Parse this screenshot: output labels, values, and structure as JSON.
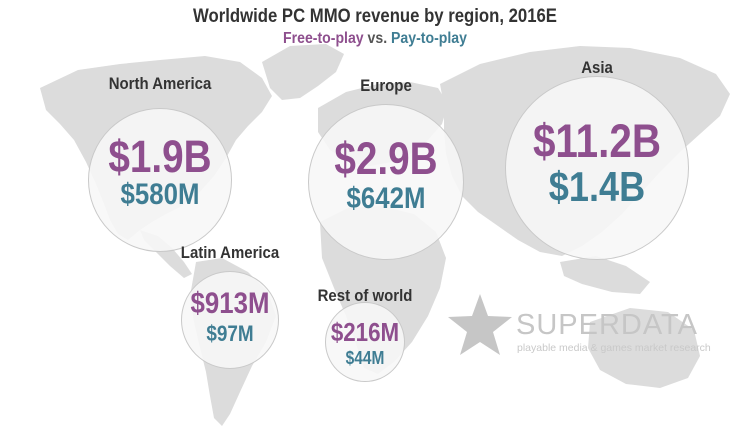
{
  "title": "Worldwide PC MMO revenue by region, 2016E",
  "subtitle": {
    "series_a": "Free-to-play",
    "connector": "vs.",
    "series_b": "Pay-to-play"
  },
  "colors": {
    "free_to_play": "#8e4f8e",
    "pay_to_play": "#3f7d93",
    "map": "#dcdcdc",
    "circle_border": "#c9c9c9"
  },
  "chart_data": {
    "type": "bubble-map",
    "unit": "USD",
    "series": [
      {
        "name": "Free-to-play",
        "values": [
          1900,
          2900,
          11200,
          913,
          216
        ]
      },
      {
        "name": "Pay-to-play",
        "values": [
          580,
          642,
          1400,
          97,
          44
        ]
      }
    ],
    "categories": [
      "North America",
      "Europe",
      "Asia",
      "Latin America",
      "Rest of world"
    ],
    "value_unit": "millions",
    "regions": [
      {
        "name": "North America",
        "f2p_label": "$1.9B",
        "p2p_label": "$580M"
      },
      {
        "name": "Europe",
        "f2p_label": "$2.9B",
        "p2p_label": "$642M"
      },
      {
        "name": "Asia",
        "f2p_label": "$11.2B",
        "p2p_label": "$1.4B"
      },
      {
        "name": "Latin America",
        "f2p_label": "$913M",
        "p2p_label": "$97M"
      },
      {
        "name": "Rest of world",
        "f2p_label": "$216M",
        "p2p_label": "$44M"
      }
    ]
  },
  "branding": {
    "name": "SUPERDATA",
    "tagline": "playable media & games market research",
    "icon": "star-icon"
  }
}
